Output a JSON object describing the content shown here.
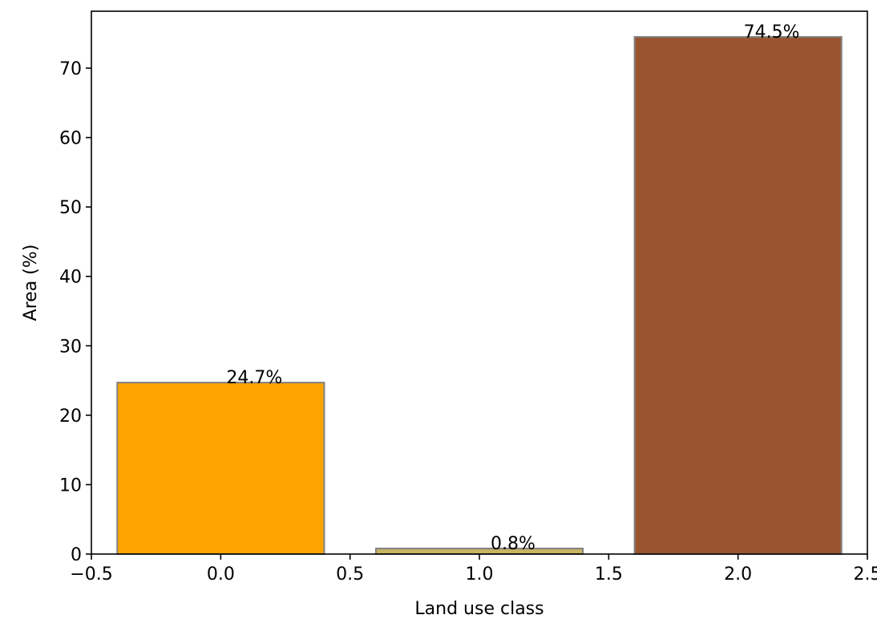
{
  "chart_data": {
    "type": "bar",
    "title": "",
    "xlabel": "Land use class",
    "ylabel": "Area (%)",
    "x": [
      0.0,
      1.0,
      2.0
    ],
    "bar_width": 0.8,
    "values": [
      24.7,
      0.8,
      74.5
    ],
    "data_labels": [
      "24.7%",
      "0.8%",
      "74.5%"
    ],
    "bar_colors": [
      "#FFA500",
      "#C8B560",
      "#9A5530"
    ],
    "bar_edge_color": "#808080",
    "xlim": [
      -0.5,
      2.5
    ],
    "ylim": [
      0,
      78.2
    ],
    "xticks": [
      -0.5,
      0.0,
      0.5,
      1.0,
      1.5,
      2.0,
      2.5
    ],
    "xtick_labels": [
      "−0.5",
      "0.0",
      "0.5",
      "1.0",
      "1.5",
      "2.0",
      "2.5"
    ],
    "yticks": [
      0,
      10,
      20,
      30,
      40,
      50,
      60,
      70
    ],
    "ytick_labels": [
      "0",
      "10",
      "20",
      "30",
      "40",
      "50",
      "60",
      "70"
    ],
    "grid": false,
    "legend": "none"
  }
}
